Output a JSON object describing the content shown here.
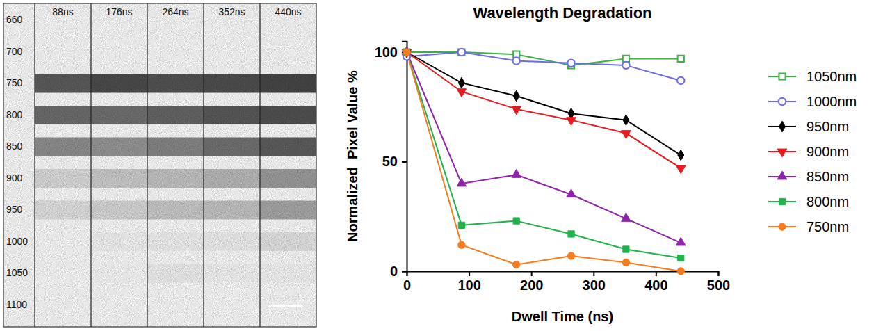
{
  "chart_data": {
    "type": "line",
    "title": "Wavelength Degradation",
    "x_label": "Dwell Time (ns)",
    "y_label": "Normalized  Pixel Value %",
    "x": [
      0,
      88,
      176,
      264,
      352,
      440
    ],
    "xlim": [
      0,
      500
    ],
    "xticks": [
      0,
      100,
      200,
      300,
      400,
      500
    ],
    "ylim": [
      0,
      105
    ],
    "yticks": [
      0,
      50,
      100
    ],
    "legend": "right",
    "series": [
      {
        "name": "1050nm",
        "color": "#3cb043",
        "marker": "square-open",
        "values": [
          100,
          100,
          99,
          94,
          97,
          97
        ]
      },
      {
        "name": "1000nm",
        "color": "#6b6bef",
        "marker": "circle-open",
        "values": [
          98,
          100,
          96,
          95,
          94,
          87
        ]
      },
      {
        "name": "950nm",
        "color": "#000000",
        "marker": "diamond",
        "values": [
          100,
          86,
          80,
          72,
          69,
          53
        ]
      },
      {
        "name": "900nm",
        "color": "#e8191f",
        "marker": "triangle-down",
        "values": [
          100,
          82,
          74,
          69,
          63,
          47
        ]
      },
      {
        "name": "850nm",
        "color": "#8e24aa",
        "marker": "triangle-up",
        "values": [
          100,
          40,
          44,
          35,
          24,
          13
        ]
      },
      {
        "name": "800nm",
        "color": "#21b24b",
        "marker": "square",
        "values": [
          100,
          21,
          23,
          17,
          10,
          6
        ]
      },
      {
        "name": "750nm",
        "color": "#f57c1f",
        "marker": "circle",
        "values": [
          100,
          12,
          3,
          7,
          4,
          0
        ]
      }
    ]
  },
  "image_panel": {
    "column_labels": [
      "88ns",
      "176ns",
      "264ns",
      "352ns",
      "440ns"
    ],
    "row_labels": [
      "660",
      "700",
      "750",
      "800",
      "850",
      "900",
      "950",
      "1000",
      "1050",
      "1100"
    ]
  }
}
